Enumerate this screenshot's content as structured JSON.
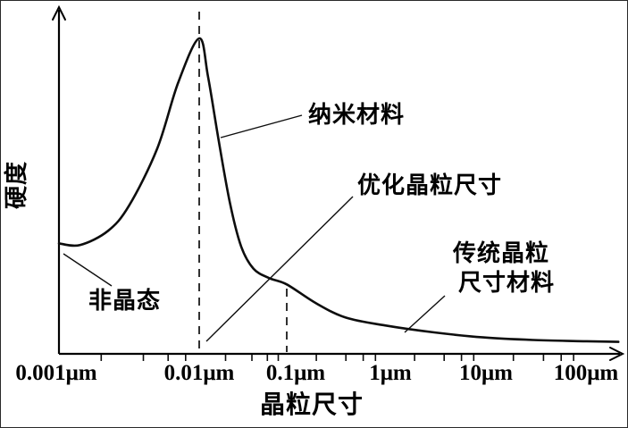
{
  "figure": {
    "ylabel": "硬度",
    "xlabel": "晶粒尺寸",
    "annotations": {
      "nano": "纳米材料",
      "optimized": "优化晶粒尺寸",
      "traditional_line1": "传统晶粒",
      "tra统_note": "",
      "traditional_line2": "尺寸材料",
      "amorphous": "非晶态"
    }
  },
  "chart_data": {
    "type": "line",
    "title": "",
    "xlabel": "晶粒尺寸",
    "ylabel": "硬度",
    "x_axis": {
      "scale": "log",
      "unit": "μm",
      "tick_labels": [
        "0.001μm",
        "0.01μm",
        "0.1μm",
        "1μm",
        "10μm",
        "100μm"
      ],
      "range_um": [
        0.001,
        100
      ]
    },
    "y_axis": {
      "label": "硬度",
      "tick_labels": [],
      "scale": "relative (no numeric ticks shown)",
      "range_relative": [
        0,
        1
      ]
    },
    "series": [
      {
        "name": "hardness-vs-grain-size",
        "x_format": "log10 of grain size in μm",
        "y_format": "relative hardness (0–1, peak = 1)",
        "points": [
          [
            -3.0,
            0.35
          ],
          [
            -2.85,
            0.345
          ],
          [
            -2.65,
            0.39
          ],
          [
            -2.5,
            0.47
          ],
          [
            -2.3,
            0.65
          ],
          [
            -2.15,
            0.86
          ],
          [
            -2.0,
            1.0
          ],
          [
            -1.9,
            0.88
          ],
          [
            -1.78,
            0.68
          ],
          [
            -1.65,
            0.48
          ],
          [
            -1.52,
            0.34
          ],
          [
            -1.38,
            0.27
          ],
          [
            -1.2,
            0.24
          ],
          [
            -1.0,
            0.22
          ],
          [
            -0.7,
            0.16
          ],
          [
            -0.4,
            0.115
          ],
          [
            0.0,
            0.09
          ],
          [
            0.5,
            0.068
          ],
          [
            1.0,
            0.052
          ],
          [
            1.5,
            0.044
          ],
          [
            2.0,
            0.04
          ],
          [
            2.35,
            0.038
          ]
        ],
        "peak": {
          "x_um": 0.01,
          "y_relative": 1.0
        }
      }
    ],
    "reference_lines": [
      {
        "style": "dashed",
        "x_um": 0.01,
        "extent": "full height through the peak"
      },
      {
        "style": "dashed",
        "x_um": 0.1,
        "extent": "from curve down to x-axis"
      }
    ],
    "annotations": [
      {
        "text": "纳米材料",
        "points_to": "descending slope of curve near peak (~0.02 μm)"
      },
      {
        "text": "优化晶粒尺寸",
        "points_to": "x-axis region between 0.01 μm and 0.1 μm"
      },
      {
        "text": "传统晶粒 尺寸材料",
        "points_to": "flat tail of curve (~1–100 μm)"
      },
      {
        "text": "非晶态",
        "points_to": "left end of curve at 0.001 μm"
      }
    ],
    "legend": "none",
    "grid": "off"
  }
}
